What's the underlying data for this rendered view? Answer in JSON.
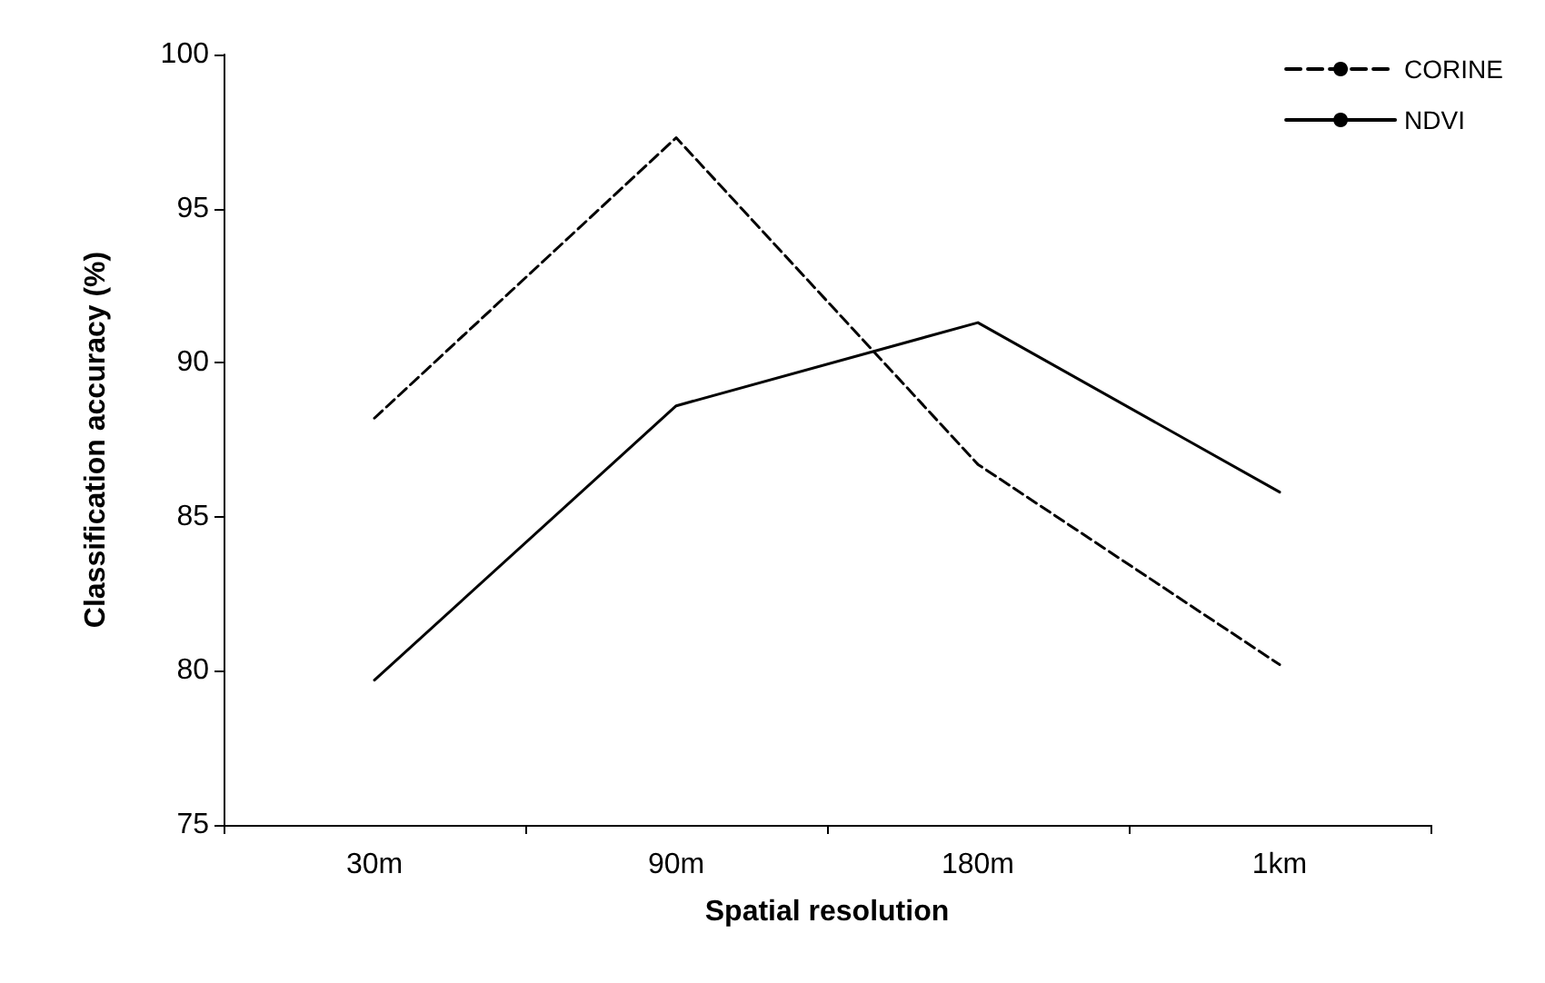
{
  "chart_data": {
    "type": "line",
    "xlabel": "Spatial resolution",
    "ylabel": "Classification accuracy (%)",
    "categories": [
      "30m",
      "90m",
      "180m",
      "1km"
    ],
    "series": [
      {
        "name": "CORINE",
        "color": "#000000",
        "line_style": "dashed",
        "values": [
          88.2,
          97.3,
          86.7,
          80.2
        ]
      },
      {
        "name": "NDVI",
        "color": "#000000",
        "line_style": "solid",
        "values": [
          79.7,
          88.6,
          91.3,
          85.8
        ]
      }
    ],
    "ylim": [
      75,
      100
    ],
    "yticks": [
      75,
      80,
      85,
      90,
      95,
      100
    ],
    "grid": false,
    "legend": "top right",
    "marker": "none"
  }
}
